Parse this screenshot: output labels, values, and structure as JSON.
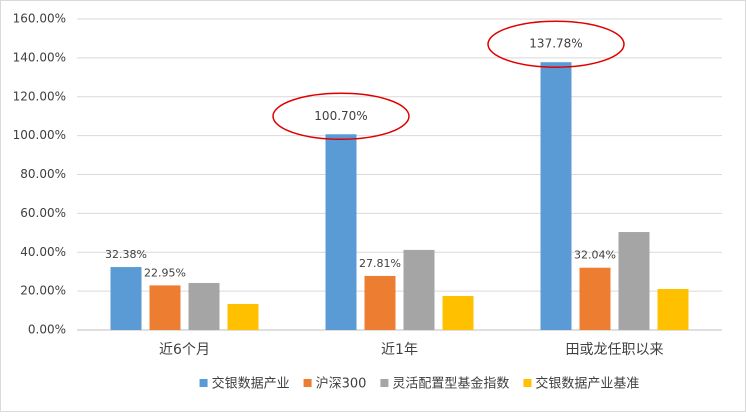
{
  "chart_data": {
    "type": "bar",
    "categories": [
      "近6个月",
      "近1年",
      "田或龙任职以来"
    ],
    "series": [
      {
        "name": "交银数据产业",
        "color": "#5b9bd5",
        "values": [
          32.38,
          100.7,
          137.78
        ],
        "value_labels": [
          "32.38%",
          "100.70%",
          "137.78%"
        ]
      },
      {
        "name": "沪深300",
        "color": "#ed7d31",
        "values": [
          22.95,
          27.81,
          32.04
        ],
        "value_labels": [
          "22.95%",
          "27.81%",
          "32.04%"
        ]
      },
      {
        "name": "灵活配置型基金指数",
        "color": "#a5a5a5",
        "values": [
          24.2,
          41.2,
          50.4
        ]
      },
      {
        "name": "交银数据产业基准",
        "color": "#ffc000",
        "values": [
          13.4,
          17.5,
          21.1
        ]
      }
    ],
    "ylim": [
      0,
      160
    ],
    "yticks": [
      {
        "value": 0,
        "label": "0.00%"
      },
      {
        "value": 20,
        "label": "20.00%"
      },
      {
        "value": 40,
        "label": "40.00%"
      },
      {
        "value": 60,
        "label": "60.00%"
      },
      {
        "value": 80,
        "label": "80.00%"
      },
      {
        "value": 100,
        "label": "100.00%"
      },
      {
        "value": 120,
        "label": "120.00%"
      },
      {
        "value": 140,
        "label": "140.00%"
      },
      {
        "value": 160,
        "label": "160.00%"
      }
    ],
    "grid": true,
    "legend": "bottom"
  }
}
